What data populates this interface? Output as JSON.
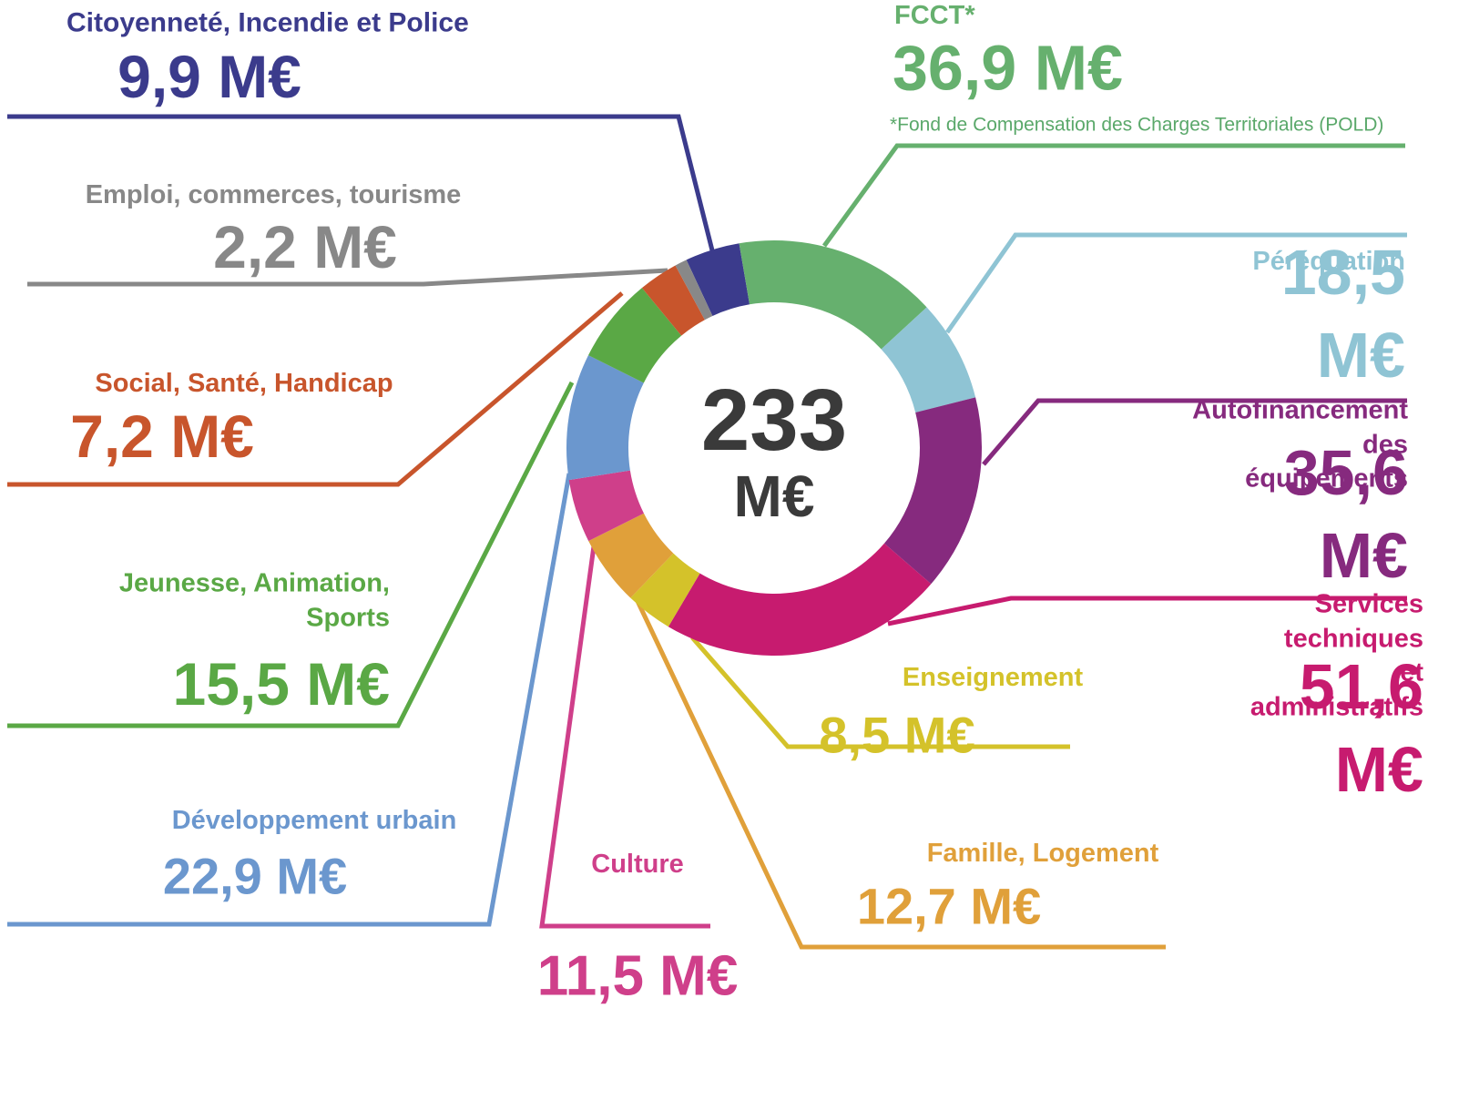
{
  "chart_data": {
    "type": "donut",
    "center_label": "233",
    "center_unit": "M€",
    "footnote": "*Fond de Compensation des Charges Territoriales (POLD)",
    "categories": [
      "Citoyenneté, Incendie et Police",
      "FCCT*",
      "Péréquation",
      "Autofinancement\ndes équipements",
      "Services techniques\net administratifs",
      "Enseignement",
      "Famille, Logement",
      "Culture",
      "Développement urbain",
      "Jeunesse, Animation,\nSports",
      "Social, Santé, Handicap",
      "Emploi, commerces, tourisme"
    ],
    "values": [
      9.9,
      36.9,
      18.5,
      35.6,
      51.6,
      8.5,
      12.7,
      11.5,
      22.9,
      15.5,
      7.2,
      2.2
    ],
    "value_labels": [
      "9,9 M€",
      "36,9 M€",
      "18,5 M€",
      "35,6 M€",
      "51,6 M€",
      "8,5 M€",
      "12,7 M€",
      "11,5 M€",
      "22,9 M€",
      "15,5 M€",
      "7,2 M€",
      "2,2 M€"
    ],
    "colors": [
      "#3b3b8c",
      "#66b06e",
      "#8fc4d4",
      "#862a7e",
      "#c71b6f",
      "#d4c22a",
      "#e0a03a",
      "#cf3f8a",
      "#6b97ce",
      "#5aa845",
      "#c8552c",
      "#888888"
    ]
  }
}
